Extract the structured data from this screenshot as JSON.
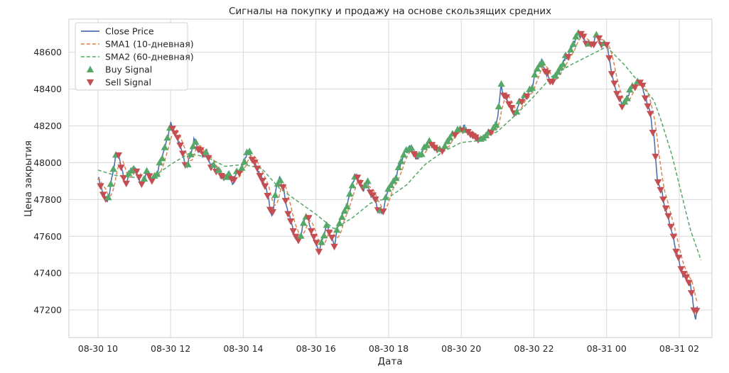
{
  "chart_data": {
    "type": "line",
    "title": "Сигналы на покупку и продажу на основе скользящих средних",
    "xlabel": "Дата",
    "ylabel": "Цена закрытия",
    "x_range_hours": [
      9.2,
      26.9
    ],
    "ylim": [
      47050,
      48780
    ],
    "x_ticks": [
      {
        "t": 10,
        "label": "08-30 10"
      },
      {
        "t": 12,
        "label": "08-30 12"
      },
      {
        "t": 14,
        "label": "08-30 14"
      },
      {
        "t": 16,
        "label": "08-30 16"
      },
      {
        "t": 18,
        "label": "08-30 18"
      },
      {
        "t": 20,
        "label": "08-30 20"
      },
      {
        "t": 22,
        "label": "08-30 22"
      },
      {
        "t": 24,
        "label": "08-31 00"
      },
      {
        "t": 26,
        "label": "08-31 02"
      }
    ],
    "y_ticks": [
      47200,
      47400,
      47600,
      47800,
      48000,
      48200,
      48400,
      48600
    ],
    "grid": true,
    "legend_position": "top-left",
    "colors": {
      "close": "#4c72b0",
      "sma1": "#dd8452",
      "sma2": "#55a868",
      "buy": "#55a868",
      "sell": "#c44e52",
      "grid": "#d9d9d9",
      "frame": "#cccccc"
    },
    "series_meta": [
      {
        "key": "close",
        "name": "Close Price"
      },
      {
        "key": "sma1",
        "name": "SMA1 (10-дневная)"
      },
      {
        "key": "sma2",
        "name": "SMA2 (60-дневная)"
      },
      {
        "key": "buy",
        "name": "Buy Signal"
      },
      {
        "key": "sell",
        "name": "Sell Signal"
      }
    ],
    "x_unit": "hours since 08-30 00:00",
    "close_keypoints": [
      [
        10.0,
        47920
      ],
      [
        10.1,
        47860
      ],
      [
        10.2,
        47800
      ],
      [
        10.25,
        47780
      ],
      [
        10.35,
        47870
      ],
      [
        10.4,
        47940
      ],
      [
        10.5,
        48040
      ],
      [
        10.6,
        48020
      ],
      [
        10.65,
        47960
      ],
      [
        10.75,
        47880
      ],
      [
        10.85,
        47940
      ],
      [
        11.0,
        47980
      ],
      [
        11.2,
        47880
      ],
      [
        11.35,
        47960
      ],
      [
        11.5,
        47900
      ],
      [
        11.65,
        47950
      ],
      [
        11.8,
        48060
      ],
      [
        11.9,
        48120
      ],
      [
        12.0,
        48220
      ],
      [
        12.1,
        48170
      ],
      [
        12.25,
        48100
      ],
      [
        12.35,
        48020
      ],
      [
        12.45,
        47990
      ],
      [
        12.55,
        48040
      ],
      [
        12.65,
        48130
      ],
      [
        12.75,
        48080
      ],
      [
        12.9,
        48040
      ],
      [
        13.0,
        48060
      ],
      [
        13.1,
        47990
      ],
      [
        13.3,
        47960
      ],
      [
        13.45,
        47900
      ],
      [
        13.6,
        47950
      ],
      [
        13.7,
        47880
      ],
      [
        13.8,
        47940
      ],
      [
        13.95,
        47960
      ],
      [
        14.1,
        48060
      ],
      [
        14.2,
        48040
      ],
      [
        14.3,
        48000
      ],
      [
        14.4,
        47960
      ],
      [
        14.5,
        47920
      ],
      [
        14.6,
        47880
      ],
      [
        14.7,
        47800
      ],
      [
        14.75,
        47720
      ],
      [
        14.8,
        47700
      ],
      [
        14.9,
        47860
      ],
      [
        15.0,
        47930
      ],
      [
        15.1,
        47860
      ],
      [
        15.2,
        47760
      ],
      [
        15.3,
        47680
      ],
      [
        15.4,
        47620
      ],
      [
        15.5,
        47580
      ],
      [
        15.6,
        47620
      ],
      [
        15.7,
        47720
      ],
      [
        15.8,
        47680
      ],
      [
        15.9,
        47620
      ],
      [
        16.0,
        47560
      ],
      [
        16.1,
        47510
      ],
      [
        16.2,
        47600
      ],
      [
        16.3,
        47660
      ],
      [
        16.4,
        47600
      ],
      [
        16.5,
        47540
      ],
      [
        16.6,
        47650
      ],
      [
        16.75,
        47720
      ],
      [
        16.9,
        47800
      ],
      [
        17.0,
        47880
      ],
      [
        17.1,
        47930
      ],
      [
        17.2,
        47900
      ],
      [
        17.3,
        47840
      ],
      [
        17.4,
        47900
      ],
      [
        17.5,
        47840
      ],
      [
        17.6,
        47800
      ],
      [
        17.7,
        47760
      ],
      [
        17.8,
        47720
      ],
      [
        17.9,
        47780
      ],
      [
        18.0,
        47860
      ],
      [
        18.15,
        47900
      ],
      [
        18.3,
        47980
      ],
      [
        18.45,
        48060
      ],
      [
        18.6,
        48080
      ],
      [
        18.75,
        48020
      ],
      [
        18.9,
        48050
      ],
      [
        19.1,
        48120
      ],
      [
        19.3,
        48080
      ],
      [
        19.5,
        48060
      ],
      [
        19.7,
        48140
      ],
      [
        19.9,
        48180
      ],
      [
        20.1,
        48190
      ],
      [
        20.3,
        48150
      ],
      [
        20.5,
        48130
      ],
      [
        20.7,
        48150
      ],
      [
        20.85,
        48160
      ],
      [
        21.0,
        48240
      ],
      [
        21.1,
        48420
      ],
      [
        21.2,
        48360
      ],
      [
        21.35,
        48300
      ],
      [
        21.5,
        48260
      ],
      [
        21.6,
        48330
      ],
      [
        21.8,
        48360
      ],
      [
        21.95,
        48420
      ],
      [
        22.1,
        48520
      ],
      [
        22.2,
        48560
      ],
      [
        22.35,
        48480
      ],
      [
        22.5,
        48440
      ],
      [
        22.7,
        48500
      ],
      [
        22.85,
        48560
      ],
      [
        23.0,
        48600
      ],
      [
        23.15,
        48680
      ],
      [
        23.3,
        48700
      ],
      [
        23.45,
        48640
      ],
      [
        23.6,
        48640
      ],
      [
        23.75,
        48690
      ],
      [
        23.85,
        48640
      ],
      [
        23.95,
        48660
      ],
      [
        24.05,
        48600
      ],
      [
        24.15,
        48480
      ],
      [
        24.25,
        48400
      ],
      [
        24.35,
        48340
      ],
      [
        24.45,
        48300
      ],
      [
        24.6,
        48380
      ],
      [
        24.75,
        48420
      ],
      [
        24.9,
        48440
      ],
      [
        25.0,
        48400
      ],
      [
        25.1,
        48340
      ],
      [
        25.2,
        48260
      ],
      [
        25.3,
        48150
      ],
      [
        25.4,
        47900
      ],
      [
        25.5,
        47850
      ],
      [
        25.6,
        47760
      ],
      [
        25.7,
        47700
      ],
      [
        25.8,
        47620
      ],
      [
        25.9,
        47540
      ],
      [
        26.0,
        47450
      ],
      [
        26.1,
        47400
      ],
      [
        26.2,
        47380
      ],
      [
        26.3,
        47340
      ],
      [
        26.35,
        47280
      ],
      [
        26.4,
        47200
      ],
      [
        26.45,
        47140
      ],
      [
        26.5,
        47220
      ]
    ],
    "sma2_keypoints": [
      [
        10.0,
        47960
      ],
      [
        10.5,
        47930
      ],
      [
        11.0,
        47920
      ],
      [
        11.5,
        47920
      ],
      [
        12.0,
        47990
      ],
      [
        12.5,
        48050
      ],
      [
        13.0,
        48030
      ],
      [
        13.5,
        47980
      ],
      [
        14.0,
        47990
      ],
      [
        14.5,
        47970
      ],
      [
        15.0,
        47860
      ],
      [
        15.5,
        47790
      ],
      [
        16.0,
        47720
      ],
      [
        16.5,
        47640
      ],
      [
        17.0,
        47700
      ],
      [
        17.5,
        47780
      ],
      [
        18.0,
        47810
      ],
      [
        18.5,
        47880
      ],
      [
        19.0,
        47990
      ],
      [
        19.5,
        48060
      ],
      [
        20.0,
        48110
      ],
      [
        20.5,
        48120
      ],
      [
        21.0,
        48170
      ],
      [
        21.5,
        48260
      ],
      [
        22.0,
        48360
      ],
      [
        22.5,
        48470
      ],
      [
        23.0,
        48530
      ],
      [
        23.5,
        48580
      ],
      [
        24.0,
        48630
      ],
      [
        24.5,
        48530
      ],
      [
        25.0,
        48410
      ],
      [
        25.3,
        48340
      ],
      [
        25.5,
        48230
      ],
      [
        25.8,
        48040
      ],
      [
        26.0,
        47880
      ],
      [
        26.3,
        47640
      ],
      [
        26.6,
        47470
      ]
    ]
  }
}
